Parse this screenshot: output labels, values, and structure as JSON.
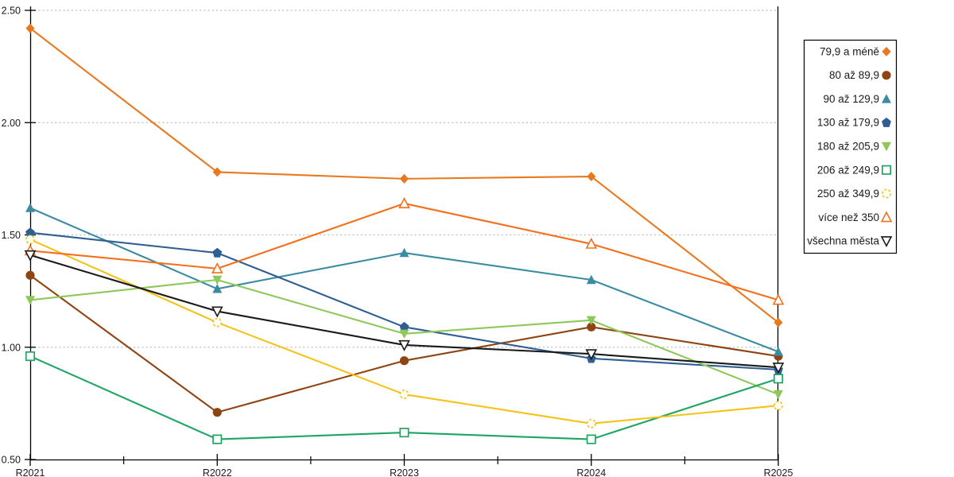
{
  "figure": {
    "background": "#FFFFFF",
    "axis_color": "#000000",
    "grid_color": "#BDBDBD",
    "text_color": "#1A1A1A",
    "legend_border_color": "#000000"
  },
  "chart_data": {
    "type": "line",
    "title": "",
    "xlabel": "",
    "ylabel": "",
    "categories": [
      "R2021",
      "R2022",
      "R2023",
      "R2024",
      "R2025"
    ],
    "ylim": [
      0.5,
      2.5
    ],
    "ytick_step": 0.5,
    "ytick_labels": [
      "0.50",
      "1.00",
      "1.50",
      "2.00",
      "2.50"
    ],
    "grid": "horizontal-dotted",
    "legend_position": "right",
    "series": [
      {
        "name": "79,9 a méně",
        "marker": "diamond-filled",
        "color": "#E8791F",
        "values": [
          2.42,
          1.78,
          1.75,
          1.76,
          1.11
        ]
      },
      {
        "name": "80 až 89,9",
        "marker": "circle-filled",
        "color": "#8E4513",
        "values": [
          1.32,
          0.71,
          0.94,
          1.09,
          0.96
        ]
      },
      {
        "name": "90 až 129,9",
        "marker": "triangle-up-filled",
        "color": "#3B8CA3",
        "values": [
          1.62,
          1.26,
          1.42,
          1.3,
          0.98
        ]
      },
      {
        "name": "130 až 179,9",
        "marker": "pentagon-filled",
        "color": "#2F5E92",
        "values": [
          1.51,
          1.42,
          1.09,
          0.95,
          0.9
        ]
      },
      {
        "name": "180 až 205,9",
        "marker": "triangle-down-filled",
        "color": "#8EC75A",
        "values": [
          1.21,
          1.3,
          1.06,
          1.12,
          0.79
        ]
      },
      {
        "name": "206 až 249,9",
        "marker": "square-open",
        "color": "#1FA563",
        "values": [
          0.96,
          0.59,
          0.62,
          0.59,
          0.86
        ]
      },
      {
        "name": "250 až 349,9",
        "marker": "circle-open",
        "color": "#F5C318",
        "values": [
          1.48,
          1.11,
          0.79,
          0.66,
          0.74
        ]
      },
      {
        "name": "více než 350",
        "marker": "triangle-up-open",
        "color": "#F4701D",
        "values": [
          1.43,
          1.35,
          1.64,
          1.46,
          1.21
        ]
      },
      {
        "name": "všechna města",
        "marker": "triangle-down-open",
        "color": "#1A1A1A",
        "values": [
          1.41,
          1.16,
          1.01,
          0.97,
          0.91
        ]
      }
    ]
  }
}
